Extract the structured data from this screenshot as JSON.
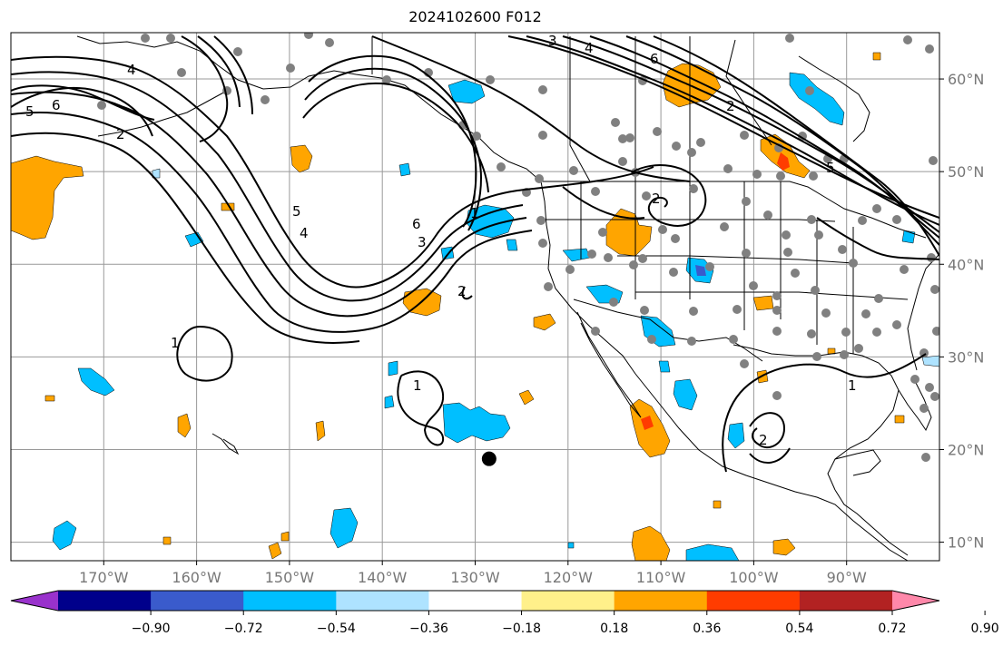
{
  "title": "2024102600 F012",
  "map": {
    "lon_range": [
      -180,
      -80
    ],
    "lat_range": [
      8,
      65
    ],
    "grid": true,
    "lon_ticks": [
      {
        "value": -170,
        "label": "170°W"
      },
      {
        "value": -160,
        "label": "160°W"
      },
      {
        "value": -150,
        "label": "150°W"
      },
      {
        "value": -140,
        "label": "140°W"
      },
      {
        "value": -130,
        "label": "130°W"
      },
      {
        "value": -120,
        "label": "120°W"
      },
      {
        "value": -110,
        "label": "110°W"
      },
      {
        "value": -100,
        "label": "100°W"
      },
      {
        "value": -90,
        "label": "90°W"
      }
    ],
    "lat_ticks": [
      {
        "value": 10,
        "label": "10°N"
      },
      {
        "value": 20,
        "label": "20°N"
      },
      {
        "value": 30,
        "label": "30°N"
      },
      {
        "value": 40,
        "label": "40°N"
      },
      {
        "value": 50,
        "label": "50°N"
      },
      {
        "value": 60,
        "label": "60°N"
      }
    ]
  },
  "colorbar": {
    "colors": [
      "#9932cc",
      "#00008b",
      "#3a5bcc",
      "#00bfff",
      "#aee3ff",
      "#ffffff",
      "#fff08a",
      "#ffa500",
      "#ff3c00",
      "#b22222",
      "#ff88aa"
    ],
    "labels": [
      "−0.90",
      "−0.72",
      "−0.54",
      "−0.36",
      "−0.18",
      "0.18",
      "0.36",
      "0.54",
      "0.72",
      "0.90"
    ]
  },
  "contour_labels": [
    "6",
    "5",
    "4",
    "3",
    "2",
    "1"
  ],
  "marker": {
    "lon": -128.5,
    "lat": 19
  }
}
